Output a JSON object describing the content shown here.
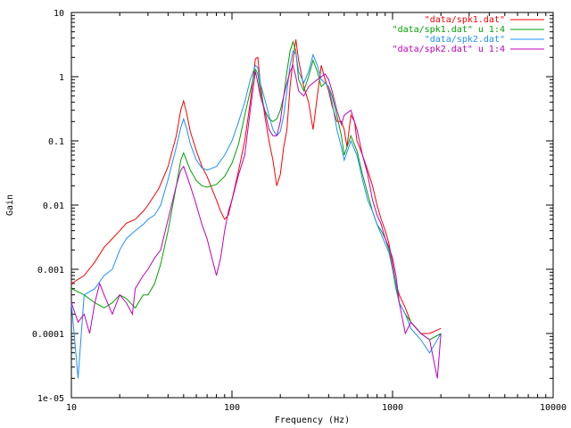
{
  "chart_data": {
    "type": "line",
    "title": "",
    "xlabel": "Frequency (Hz)",
    "ylabel": "Gain",
    "x_scale": "log",
    "y_scale": "log",
    "xlim": [
      10,
      10000
    ],
    "ylim": [
      1e-05,
      10
    ],
    "x_ticks": [
      {
        "value": 10,
        "label": "10"
      },
      {
        "value": 100,
        "label": "100"
      },
      {
        "value": 1000,
        "label": "1000"
      },
      {
        "value": 10000,
        "label": "10000"
      }
    ],
    "y_ticks": [
      {
        "value": 1e-05,
        "label": "1e-05"
      },
      {
        "value": 0.0001,
        "label": "0.0001"
      },
      {
        "value": 0.001,
        "label": "0.001"
      },
      {
        "value": 0.01,
        "label": "0.01"
      },
      {
        "value": 0.1,
        "label": "0.1"
      },
      {
        "value": 1,
        "label": "1"
      },
      {
        "value": 10,
        "label": "10"
      }
    ],
    "grid": false,
    "legend_position": "top-right",
    "series": [
      {
        "name": "\"data/spk1.dat\"",
        "color": "#ff0000",
        "points": [
          [
            10,
            0.0006
          ],
          [
            12,
            0.0008
          ],
          [
            14,
            0.0013
          ],
          [
            16,
            0.0022
          ],
          [
            18,
            0.003
          ],
          [
            20,
            0.004
          ],
          [
            22,
            0.0052
          ],
          [
            25,
            0.006
          ],
          [
            28,
            0.008
          ],
          [
            30,
            0.01
          ],
          [
            35,
            0.018
          ],
          [
            40,
            0.04
          ],
          [
            45,
            0.12
          ],
          [
            48,
            0.3
          ],
          [
            50,
            0.42
          ],
          [
            52,
            0.28
          ],
          [
            55,
            0.14
          ],
          [
            60,
            0.07
          ],
          [
            65,
            0.04
          ],
          [
            70,
            0.028
          ],
          [
            75,
            0.018
          ],
          [
            80,
            0.012
          ],
          [
            85,
            0.008
          ],
          [
            90,
            0.006
          ],
          [
            95,
            0.007
          ],
          [
            100,
            0.012
          ],
          [
            110,
            0.035
          ],
          [
            120,
            0.1
          ],
          [
            130,
            0.4
          ],
          [
            140,
            1.9
          ],
          [
            145,
            2.0
          ],
          [
            150,
            0.8
          ],
          [
            160,
            0.25
          ],
          [
            170,
            0.1
          ],
          [
            180,
            0.05
          ],
          [
            190,
            0.02
          ],
          [
            200,
            0.03
          ],
          [
            210,
            0.08
          ],
          [
            220,
            0.15
          ],
          [
            230,
            0.7
          ],
          [
            240,
            1.8
          ],
          [
            250,
            3.8
          ],
          [
            260,
            1.8
          ],
          [
            280,
            0.7
          ],
          [
            300,
            0.4
          ],
          [
            320,
            0.15
          ],
          [
            340,
            0.5
          ],
          [
            360,
            1.5
          ],
          [
            380,
            0.9
          ],
          [
            400,
            0.6
          ],
          [
            420,
            0.35
          ],
          [
            450,
            0.2
          ],
          [
            480,
            0.2
          ],
          [
            500,
            0.15
          ],
          [
            520,
            0.08
          ],
          [
            550,
            0.25
          ],
          [
            580,
            0.2
          ],
          [
            600,
            0.1
          ],
          [
            650,
            0.06
          ],
          [
            700,
            0.035
          ],
          [
            750,
            0.02
          ],
          [
            800,
            0.01
          ],
          [
            850,
            0.006
          ],
          [
            900,
            0.004
          ],
          [
            950,
            0.0025
          ],
          [
            1000,
            0.0012
          ],
          [
            1050,
            0.0006
          ],
          [
            1100,
            0.0004
          ],
          [
            1200,
            0.00025
          ],
          [
            1300,
            0.00015
          ],
          [
            1500,
            0.0001
          ],
          [
            1700,
            0.0001
          ],
          [
            2000,
            0.00012
          ]
        ]
      },
      {
        "name": "\"data/spk1.dat\" u 1:4",
        "color": "#00a000",
        "points": [
          [
            10,
            0.0005
          ],
          [
            12,
            0.0004
          ],
          [
            14,
            0.0003
          ],
          [
            16,
            0.00025
          ],
          [
            18,
            0.0003
          ],
          [
            20,
            0.0004
          ],
          [
            22,
            0.00035
          ],
          [
            25,
            0.00025
          ],
          [
            28,
            0.0004
          ],
          [
            30,
            0.0004
          ],
          [
            33,
            0.0006
          ],
          [
            36,
            0.0012
          ],
          [
            40,
            0.004
          ],
          [
            45,
            0.02
          ],
          [
            48,
            0.05
          ],
          [
            50,
            0.065
          ],
          [
            52,
            0.05
          ],
          [
            55,
            0.035
          ],
          [
            60,
            0.024
          ],
          [
            65,
            0.02
          ],
          [
            70,
            0.019
          ],
          [
            80,
            0.021
          ],
          [
            90,
            0.028
          ],
          [
            100,
            0.045
          ],
          [
            110,
            0.09
          ],
          [
            120,
            0.25
          ],
          [
            130,
            0.6
          ],
          [
            140,
            1.3
          ],
          [
            145,
            1.1
          ],
          [
            150,
            0.6
          ],
          [
            160,
            0.3
          ],
          [
            170,
            0.22
          ],
          [
            180,
            0.2
          ],
          [
            190,
            0.22
          ],
          [
            200,
            0.3
          ],
          [
            210,
            0.5
          ],
          [
            220,
            1.2
          ],
          [
            230,
            2.5
          ],
          [
            240,
            3.5
          ],
          [
            250,
            2.5
          ],
          [
            260,
            0.9
          ],
          [
            280,
            0.6
          ],
          [
            300,
            1.0
          ],
          [
            320,
            1.8
          ],
          [
            340,
            1.2
          ],
          [
            360,
            0.7
          ],
          [
            380,
            0.8
          ],
          [
            400,
            0.7
          ],
          [
            420,
            0.5
          ],
          [
            450,
            0.25
          ],
          [
            480,
            0.12
          ],
          [
            500,
            0.06
          ],
          [
            550,
            0.12
          ],
          [
            600,
            0.07
          ],
          [
            650,
            0.03
          ],
          [
            700,
            0.015
          ],
          [
            750,
            0.008
          ],
          [
            800,
            0.005
          ],
          [
            850,
            0.004
          ],
          [
            900,
            0.003
          ],
          [
            950,
            0.002
          ],
          [
            1000,
            0.001
          ],
          [
            1050,
            0.0005
          ],
          [
            1100,
            0.0003
          ],
          [
            1200,
            0.0002
          ],
          [
            1300,
            0.00015
          ],
          [
            1500,
            0.0001
          ],
          [
            1700,
            8e-05
          ],
          [
            2000,
            0.0001
          ]
        ]
      },
      {
        "name": "\"data/spk2.dat\"",
        "color": "#1e90ff",
        "points": [
          [
            10,
            0.0003
          ],
          [
            11,
            2e-05
          ],
          [
            12,
            0.0004
          ],
          [
            14,
            0.0005
          ],
          [
            16,
            0.0008
          ],
          [
            18,
            0.001
          ],
          [
            20,
            0.002
          ],
          [
            22,
            0.003
          ],
          [
            25,
            0.004
          ],
          [
            28,
            0.005
          ],
          [
            30,
            0.006
          ],
          [
            33,
            0.007
          ],
          [
            36,
            0.01
          ],
          [
            40,
            0.025
          ],
          [
            45,
            0.08
          ],
          [
            48,
            0.16
          ],
          [
            50,
            0.22
          ],
          [
            52,
            0.16
          ],
          [
            55,
            0.09
          ],
          [
            60,
            0.05
          ],
          [
            65,
            0.038
          ],
          [
            70,
            0.035
          ],
          [
            80,
            0.04
          ],
          [
            90,
            0.06
          ],
          [
            100,
            0.1
          ],
          [
            110,
            0.2
          ],
          [
            120,
            0.4
          ],
          [
            130,
            0.9
          ],
          [
            140,
            1.5
          ],
          [
            145,
            1.4
          ],
          [
            150,
            0.8
          ],
          [
            160,
            0.45
          ],
          [
            170,
            0.25
          ],
          [
            180,
            0.15
          ],
          [
            190,
            0.12
          ],
          [
            200,
            0.14
          ],
          [
            210,
            0.25
          ],
          [
            220,
            0.6
          ],
          [
            230,
            1.5
          ],
          [
            240,
            2.5
          ],
          [
            250,
            2.3
          ],
          [
            260,
            1.2
          ],
          [
            280,
            0.8
          ],
          [
            300,
            1.2
          ],
          [
            320,
            2.2
          ],
          [
            340,
            1.5
          ],
          [
            360,
            0.9
          ],
          [
            380,
            0.8
          ],
          [
            400,
            0.7
          ],
          [
            420,
            0.4
          ],
          [
            450,
            0.15
          ],
          [
            480,
            0.08
          ],
          [
            500,
            0.05
          ],
          [
            550,
            0.1
          ],
          [
            600,
            0.06
          ],
          [
            650,
            0.025
          ],
          [
            700,
            0.012
          ],
          [
            750,
            0.008
          ],
          [
            800,
            0.005
          ],
          [
            850,
            0.0035
          ],
          [
            900,
            0.0025
          ],
          [
            950,
            0.0018
          ],
          [
            1000,
            0.001
          ],
          [
            1050,
            0.0006
          ],
          [
            1100,
            0.0003
          ],
          [
            1200,
            0.0002
          ],
          [
            1300,
            0.00012
          ],
          [
            1500,
            8e-05
          ],
          [
            1700,
            5e-05
          ],
          [
            2000,
            0.0001
          ]
        ]
      },
      {
        "name": "\"data/spk2.dat\" u 1:4",
        "color": "#c000c0",
        "points": [
          [
            10,
            0.0003
          ],
          [
            11,
            0.00015
          ],
          [
            12,
            0.0002
          ],
          [
            13,
            0.0001
          ],
          [
            14,
            0.0003
          ],
          [
            15,
            0.0006
          ],
          [
            16,
            0.0004
          ],
          [
            18,
            0.0002
          ],
          [
            20,
            0.0004
          ],
          [
            22,
            0.0003
          ],
          [
            24,
            0.0002
          ],
          [
            25,
            0.0005
          ],
          [
            28,
            0.0008
          ],
          [
            30,
            0.001
          ],
          [
            33,
            0.0015
          ],
          [
            36,
            0.002
          ],
          [
            40,
            0.006
          ],
          [
            45,
            0.02
          ],
          [
            48,
            0.035
          ],
          [
            50,
            0.04
          ],
          [
            52,
            0.03
          ],
          [
            55,
            0.02
          ],
          [
            60,
            0.01
          ],
          [
            65,
            0.005
          ],
          [
            70,
            0.003
          ],
          [
            75,
            0.0015
          ],
          [
            80,
            0.0008
          ],
          [
            85,
            0.0015
          ],
          [
            90,
            0.004
          ],
          [
            95,
            0.008
          ],
          [
            100,
            0.012
          ],
          [
            110,
            0.03
          ],
          [
            120,
            0.06
          ],
          [
            130,
            0.3
          ],
          [
            140,
            1.2
          ],
          [
            145,
            0.8
          ],
          [
            150,
            0.5
          ],
          [
            160,
            0.3
          ],
          [
            170,
            0.15
          ],
          [
            180,
            0.12
          ],
          [
            190,
            0.12
          ],
          [
            200,
            0.2
          ],
          [
            210,
            0.5
          ],
          [
            220,
            0.8
          ],
          [
            230,
            1.2
          ],
          [
            240,
            1.5
          ],
          [
            250,
            1.0
          ],
          [
            260,
            0.6
          ],
          [
            280,
            0.5
          ],
          [
            300,
            0.7
          ],
          [
            320,
            0.8
          ],
          [
            340,
            0.9
          ],
          [
            360,
            1.0
          ],
          [
            380,
            1.1
          ],
          [
            400,
            0.9
          ],
          [
            420,
            0.6
          ],
          [
            450,
            0.3
          ],
          [
            480,
            0.18
          ],
          [
            500,
            0.25
          ],
          [
            550,
            0.3
          ],
          [
            600,
            0.15
          ],
          [
            650,
            0.06
          ],
          [
            700,
            0.03
          ],
          [
            750,
            0.012
          ],
          [
            800,
            0.007
          ],
          [
            850,
            0.005
          ],
          [
            900,
            0.003
          ],
          [
            950,
            0.0022
          ],
          [
            1000,
            0.0015
          ],
          [
            1050,
            0.0008
          ],
          [
            1100,
            0.0003
          ],
          [
            1200,
            0.0001
          ],
          [
            1300,
            0.00015
          ],
          [
            1500,
            0.0001
          ],
          [
            1700,
            8e-05
          ],
          [
            1900,
            2e-05
          ],
          [
            2000,
            0.0001
          ]
        ]
      }
    ]
  }
}
